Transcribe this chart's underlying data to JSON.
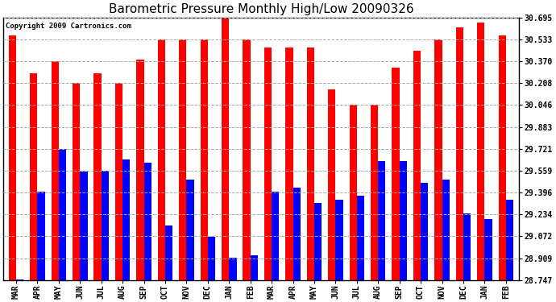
{
  "title": "Barometric Pressure Monthly High/Low 20090326",
  "copyright": "Copyright 2009 Cartronics.com",
  "categories": [
    "MAR",
    "APR",
    "MAY",
    "JUN",
    "JUL",
    "AUG",
    "SEP",
    "OCT",
    "NOV",
    "DEC",
    "JAN",
    "FEB",
    "MAR",
    "APR",
    "MAY",
    "JUN",
    "JUL",
    "AUG",
    "SEP",
    "OCT",
    "NOV",
    "DEC",
    "JAN",
    "FEB"
  ],
  "highs": [
    30.56,
    30.28,
    30.37,
    30.21,
    30.28,
    30.21,
    30.38,
    30.53,
    30.53,
    30.53,
    30.7,
    30.53,
    30.47,
    30.47,
    30.47,
    30.16,
    30.05,
    30.05,
    30.32,
    30.45,
    30.53,
    30.62,
    30.66,
    30.56
  ],
  "lows": [
    28.75,
    29.4,
    29.72,
    29.55,
    29.56,
    29.64,
    29.62,
    29.15,
    29.49,
    29.07,
    28.91,
    28.93,
    29.4,
    29.43,
    29.32,
    29.34,
    29.37,
    29.63,
    29.63,
    29.47,
    29.49,
    29.24,
    29.2,
    29.34
  ],
  "bar_color_high": "#ff0000",
  "bar_color_low": "#0000ff",
  "background_color": "#ffffff",
  "plot_bg_color": "#ffffff",
  "ylim_min": 28.747,
  "ylim_max": 30.695,
  "yticks": [
    28.747,
    28.909,
    29.072,
    29.234,
    29.396,
    29.559,
    29.721,
    29.883,
    30.046,
    30.208,
    30.37,
    30.533,
    30.695
  ],
  "title_fontsize": 11,
  "tick_fontsize": 7,
  "copyright_fontsize": 6.5
}
